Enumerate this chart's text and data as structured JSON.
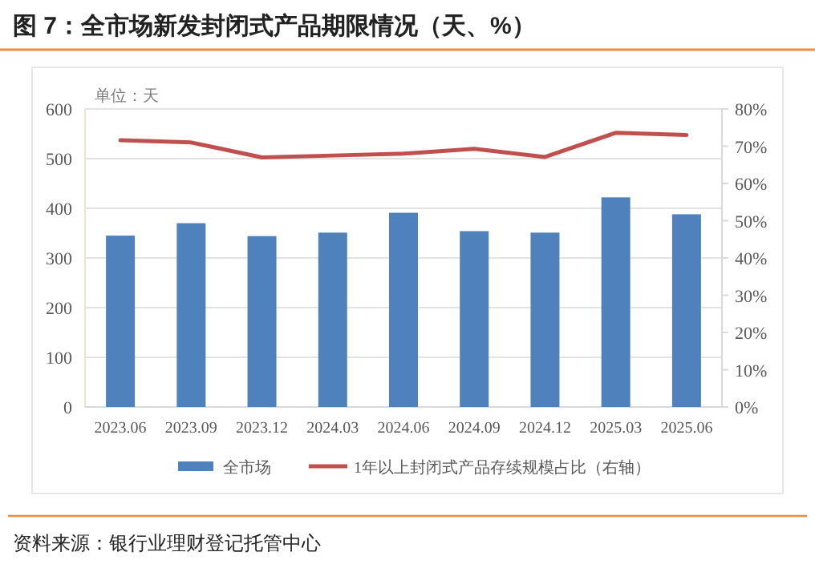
{
  "chart_data": {
    "type": "bar",
    "title": "图 7：全市场新发封闭式产品期限情况（天、%）",
    "annotations": [
      "单位：天",
      "资料来源：银行业理财登记托管中心"
    ],
    "categories": [
      "2023.06",
      "2023.09",
      "2023.12",
      "2024.03",
      "2024.06",
      "2024.09",
      "2024.12",
      "2025.03",
      "2025.06"
    ],
    "series": [
      {
        "name": "全市场",
        "color": "#4f81bd",
        "values": [
          345,
          370,
          344,
          351,
          391,
          354,
          351,
          422,
          388
        ]
      },
      {
        "name": "1年以上封闭式产品存续规模占比（右轴）",
        "type": "line",
        "axis": "y2",
        "color": "#c0504d",
        "values": [
          71.6,
          71.0,
          67.0,
          67.5,
          68.0,
          69.3,
          67.1,
          73.6,
          73.0
        ]
      }
    ],
    "ylim": [
      0,
      600
    ],
    "yticks": [
      0,
      100,
      200,
      300,
      400,
      500,
      600
    ],
    "y2lim": [
      0,
      80
    ],
    "y2ticks": [
      {
        "value": 0,
        "label": "0%"
      },
      {
        "value": 10,
        "label": "10%"
      },
      {
        "value": 20,
        "label": "20%"
      },
      {
        "value": 30,
        "label": "30%"
      },
      {
        "value": 40,
        "label": "40%"
      },
      {
        "value": 50,
        "label": "50%"
      },
      {
        "value": 60,
        "label": "60%"
      },
      {
        "value": 70,
        "label": "70%"
      },
      {
        "value": 80,
        "label": "80%"
      }
    ],
    "grid": "y",
    "legend": "bottom"
  }
}
